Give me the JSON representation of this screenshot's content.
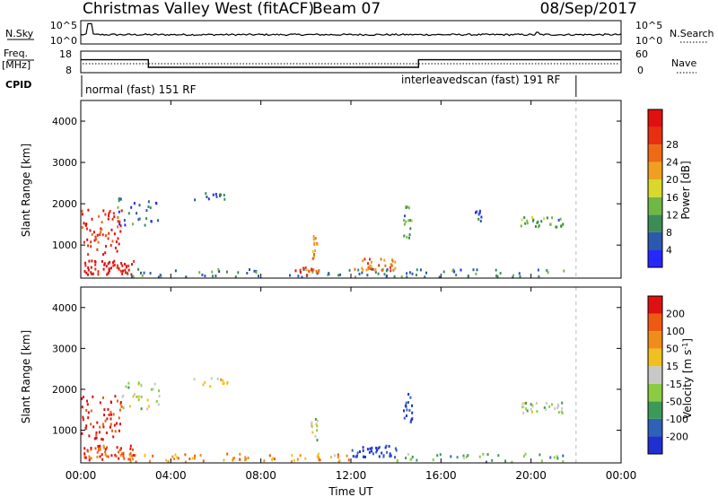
{
  "header": {
    "title": "Christmas Valley West (fitACF)",
    "beam": "Beam 07",
    "date": "08/Sep/2017"
  },
  "top_panels": {
    "nsky_label": "N.Sky",
    "nsearch_label": "N.Search",
    "nsky_ticks": [
      "10^5",
      "10^0"
    ],
    "nsearch_ticks": [
      "10^5",
      "10^0"
    ],
    "freq_label_line1": "Freq.",
    "freq_label_line2": "[MHz]",
    "freq_ticks": [
      "18",
      "8"
    ],
    "nave_label": "Nave",
    "nave_ticks": [
      "60",
      "0"
    ],
    "cpid_label": "CPID",
    "cpid_segments": [
      {
        "label": "normal (fast) 151 RF",
        "start_hour": 0,
        "end_hour": 22
      },
      {
        "label": "interleavedscan (fast) 191 RF",
        "start_hour": 22,
        "end_hour": 24
      }
    ],
    "freq_series": [
      {
        "hour": 0,
        "mhz": 14.0
      },
      {
        "hour": 3.0,
        "mhz": 10.5
      },
      {
        "hour": 15.0,
        "mhz": 14.0
      },
      {
        "hour": 24,
        "mhz": 14.0
      }
    ],
    "nave_level": 25
  },
  "chart_data": [
    {
      "type": "heatmap",
      "title": "",
      "xlabel": "",
      "ylabel": "Slant Range [km]",
      "xlim_hours": [
        0,
        24
      ],
      "ylim": [
        200,
        4500
      ],
      "yticks": [
        "1000",
        "2000",
        "3000",
        "4000"
      ],
      "colorbar": {
        "label": "Power [dB]",
        "ticks": [
          "4",
          "8",
          "12",
          "16",
          "20",
          "24",
          "28"
        ],
        "colors": [
          "#2727ff",
          "#2b59ad",
          "#3b8c55",
          "#6fb846",
          "#d8d82d",
          "#f0a020",
          "#ee6a14",
          "#e83010",
          "#e01010"
        ]
      },
      "regions": [
        {
          "t0": 0.1,
          "t1": 2.4,
          "r0": 300,
          "r1": 650,
          "level": 0.95,
          "density": 1.0
        },
        {
          "t0": 0.0,
          "t1": 1.8,
          "r0": 800,
          "r1": 1900,
          "level": 0.85,
          "density": 0.45
        },
        {
          "t0": 2.0,
          "t1": 21.5,
          "r0": 250,
          "r1": 450,
          "level": 0.25,
          "density": 0.35
        },
        {
          "t0": 9.5,
          "t1": 10.6,
          "r0": 300,
          "r1": 500,
          "level": 0.8,
          "density": 0.7
        },
        {
          "t0": 10.2,
          "t1": 10.5,
          "r0": 700,
          "r1": 1300,
          "level": 0.6,
          "density": 0.6
        },
        {
          "t0": 12.0,
          "t1": 14.0,
          "r0": 400,
          "r1": 700,
          "level": 0.7,
          "density": 0.7
        },
        {
          "t0": 14.3,
          "t1": 14.7,
          "r0": 1200,
          "r1": 2000,
          "level": 0.35,
          "density": 0.5
        },
        {
          "t0": 1.6,
          "t1": 3.5,
          "r0": 1500,
          "r1": 2200,
          "level": 0.2,
          "density": 0.25
        },
        {
          "t0": 19.5,
          "t1": 21.4,
          "r0": 1450,
          "r1": 1700,
          "level": 0.35,
          "density": 0.75
        },
        {
          "t0": 17.5,
          "t1": 17.8,
          "r0": 1600,
          "r1": 1900,
          "level": 0.1,
          "density": 0.3
        },
        {
          "t0": 5.0,
          "t1": 6.5,
          "r0": 2100,
          "r1": 2300,
          "level": 0.15,
          "density": 0.3
        }
      ]
    },
    {
      "type": "heatmap",
      "title": "",
      "xlabel": "Time UT",
      "ylabel": "Slant Range [km]",
      "xlim_hours": [
        0,
        24
      ],
      "ylim": [
        200,
        4500
      ],
      "yticks": [
        "1000",
        "2000",
        "3000",
        "4000"
      ],
      "xticks": [
        "00:00",
        "04:00",
        "08:00",
        "12:00",
        "16:00",
        "20:00",
        "00:00"
      ],
      "colorbar": {
        "label": "Velocity [m s^-1]",
        "ticks": [
          "200",
          "100",
          "50",
          "15",
          "-15",
          "-50",
          "-100",
          "-200"
        ],
        "colors": [
          "#2030d0",
          "#2e62b8",
          "#3b9a5a",
          "#8ccc42",
          "#c8c8c8",
          "#f0c020",
          "#f08c18",
          "#ee5a12",
          "#e01010"
        ]
      },
      "regions": [
        {
          "t0": 0.1,
          "t1": 2.4,
          "r0": 300,
          "r1": 650,
          "level": 0.85,
          "density": 1.0
        },
        {
          "t0": 0.0,
          "t1": 1.8,
          "r0": 800,
          "r1": 1900,
          "level": 0.95,
          "density": 0.45
        },
        {
          "t0": 2.0,
          "t1": 12.0,
          "r0": 250,
          "r1": 450,
          "level": 0.7,
          "density": 0.4
        },
        {
          "t0": 12.0,
          "t1": 14.0,
          "r0": 350,
          "r1": 650,
          "level": 0.05,
          "density": 0.8
        },
        {
          "t0": 14.0,
          "t1": 21.5,
          "r0": 250,
          "r1": 450,
          "level": 0.35,
          "density": 0.3
        },
        {
          "t0": 10.2,
          "t1": 10.5,
          "r0": 700,
          "r1": 1300,
          "level": 0.45,
          "density": 0.5
        },
        {
          "t0": 14.3,
          "t1": 14.7,
          "r0": 1200,
          "r1": 2000,
          "level": 0.05,
          "density": 0.55
        },
        {
          "t0": 19.5,
          "t1": 21.4,
          "r0": 1450,
          "r1": 1700,
          "level": 0.45,
          "density": 0.75
        },
        {
          "t0": 1.6,
          "t1": 3.5,
          "r0": 1500,
          "r1": 2200,
          "level": 0.45,
          "density": 0.25
        },
        {
          "t0": 5.0,
          "t1": 6.5,
          "r0": 2100,
          "r1": 2300,
          "level": 0.55,
          "density": 0.3
        }
      ]
    }
  ]
}
